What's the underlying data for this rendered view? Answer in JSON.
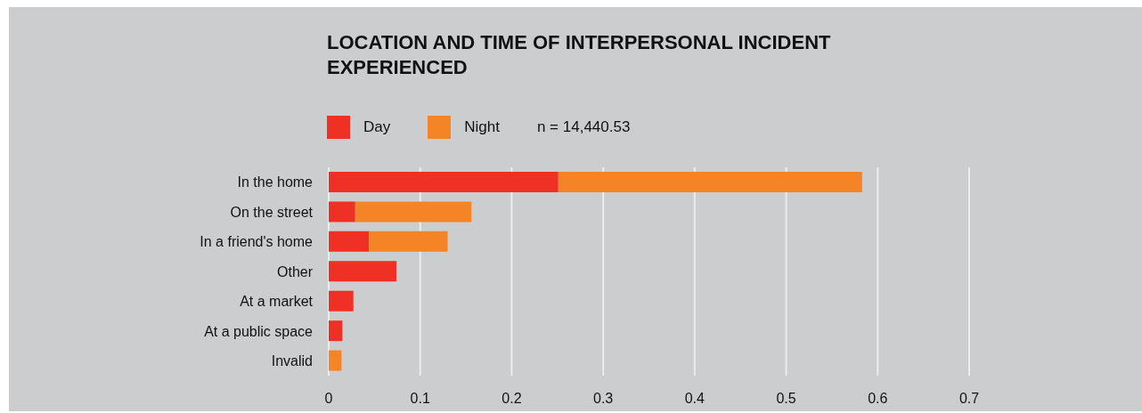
{
  "chart_data": {
    "type": "bar",
    "orientation": "horizontal",
    "stacked": true,
    "title": "LOCATION AND TIME OF INTERPERSONAL INCIDENT EXPERIENCED",
    "categories": [
      "In the home",
      "On the street",
      "In a friend's home",
      "Other",
      "At a market",
      "At a public space",
      "Invalid"
    ],
    "series": [
      {
        "name": "Day",
        "color": "#ee3124",
        "values": [
          0.251,
          0.029,
          0.044,
          0.074,
          0.027,
          0.015,
          null
        ]
      },
      {
        "name": "Night",
        "color": "#f58426",
        "values": [
          0.332,
          0.127,
          0.086,
          null,
          null,
          null,
          0.014
        ]
      }
    ],
    "xlim": [
      0,
      0.7
    ],
    "xticks": [
      0,
      0.1,
      0.2,
      0.3,
      0.4,
      0.5,
      0.6,
      0.7
    ],
    "grid": "x",
    "legend": "top left",
    "annotations": [
      "n = 14,440.53"
    ]
  }
}
